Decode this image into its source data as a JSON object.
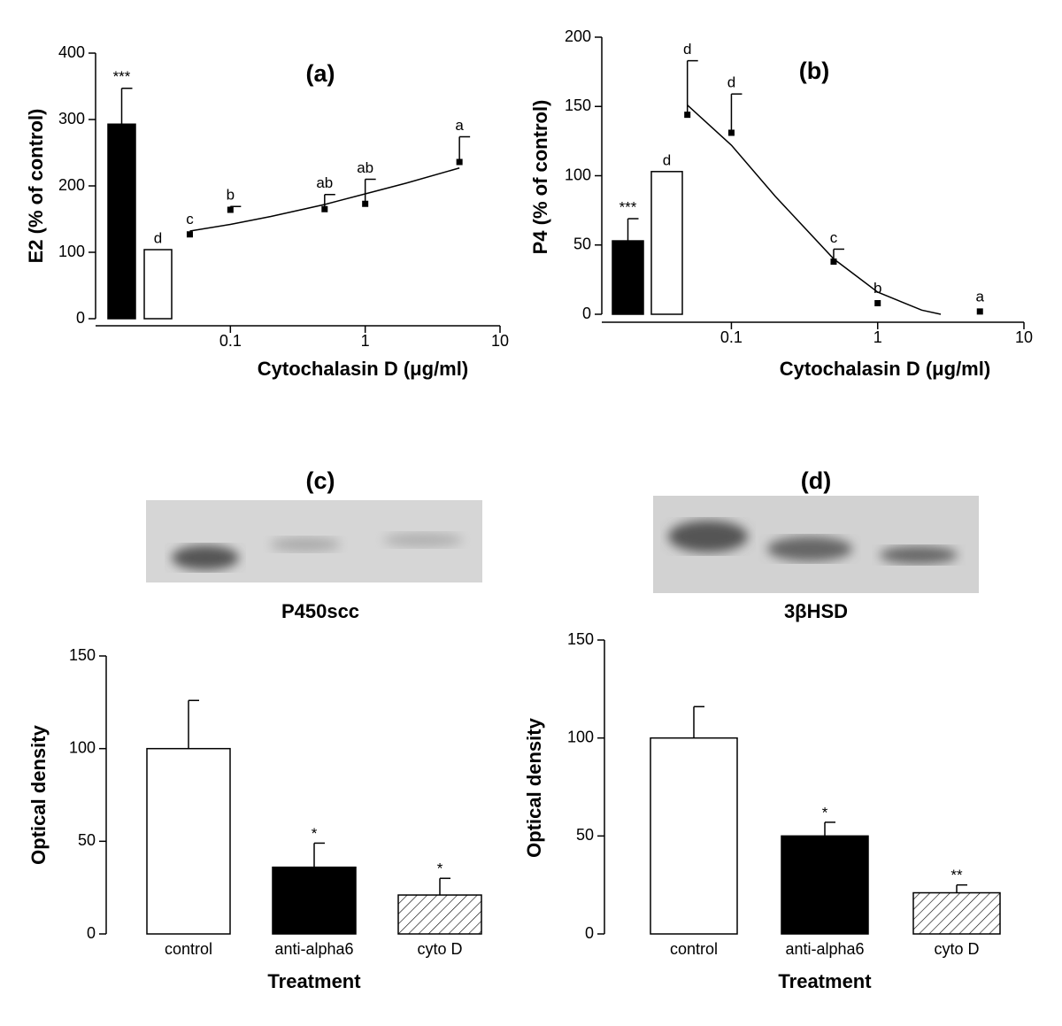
{
  "chart_data": [
    {
      "type": "dose_response",
      "title": "(a)",
      "y_label": "E2 (% of control)",
      "x_label": "Cytochalasin D (μg/ml)",
      "log_x": true,
      "xlim": [
        0.01,
        10
      ],
      "xticks": [
        0.1,
        1,
        10
      ],
      "ylim": [
        0,
        400
      ],
      "yticks": [
        0,
        100,
        200,
        300,
        400
      ],
      "bars": {
        "values": [
          293,
          104
        ],
        "errors": [
          54,
          null
        ],
        "colors": [
          "#000000",
          "#ffffff"
        ],
        "labels": [
          "***",
          "d"
        ]
      },
      "points": {
        "x": [
          0.05,
          0.1,
          0.5,
          1,
          5
        ],
        "values": [
          127,
          164,
          165,
          173,
          236
        ],
        "errors": [
          null,
          5,
          22,
          37,
          38
        ],
        "labels": [
          "c",
          "b",
          "ab",
          "ab",
          "a"
        ],
        "color": "#000000"
      },
      "fit": {
        "x": [
          0.05,
          0.1,
          0.2,
          0.5,
          1,
          2,
          5
        ],
        "values": [
          132,
          142,
          154,
          172,
          188,
          204,
          227
        ]
      }
    },
    {
      "type": "dose_response",
      "title": "(b)",
      "y_label": "P4 (% of control)",
      "x_label": "Cytochalasin D (μg/ml)",
      "log_x": true,
      "xlim": [
        0.013,
        10
      ],
      "xticks": [
        0.1,
        1,
        10
      ],
      "ylim": [
        0,
        200
      ],
      "yticks": [
        0,
        50,
        100,
        150,
        200
      ],
      "bars": {
        "values": [
          53,
          103
        ],
        "errors": [
          16,
          null
        ],
        "colors": [
          "#000000",
          "#ffffff"
        ],
        "labels": [
          "***",
          "d"
        ]
      },
      "points": {
        "x": [
          0.05,
          0.1,
          0.5,
          1,
          5
        ],
        "values": [
          144,
          131,
          38,
          8,
          2
        ],
        "errors": [
          39,
          28,
          9,
          null,
          null
        ],
        "labels": [
          "d",
          "d",
          "c",
          "b",
          "a"
        ],
        "color": "#000000"
      },
      "fit": {
        "x": [
          0.05,
          0.1,
          0.2,
          0.5,
          1,
          2,
          2.7
        ],
        "values": [
          151,
          122,
          85,
          40,
          16,
          3,
          0
        ]
      }
    },
    {
      "type": "bar",
      "title": "(c)",
      "blot_label": "P450scc",
      "y_label": "Optical density",
      "x_label": "Treatment",
      "categories": [
        "control",
        "anti-alpha6",
        "cyto D"
      ],
      "values": [
        100,
        36,
        21
      ],
      "errors": [
        26,
        13,
        9
      ],
      "annotations": [
        null,
        "*",
        "*"
      ],
      "fills": [
        "white",
        "black",
        "hatched"
      ],
      "ylim": [
        0,
        150
      ],
      "yticks": [
        0,
        50,
        100,
        150
      ]
    },
    {
      "type": "bar",
      "title": "(d)",
      "blot_label": "3βHSD",
      "y_label": "Optical density",
      "x_label": "Treatment",
      "categories": [
        "control",
        "anti-alpha6",
        "cyto D"
      ],
      "values": [
        100,
        50,
        21
      ],
      "errors": [
        16,
        7,
        4
      ],
      "annotations": [
        null,
        "*",
        "**"
      ],
      "fills": [
        "white",
        "black",
        "hatched"
      ],
      "ylim": [
        0,
        150
      ],
      "yticks": [
        0,
        50,
        100,
        150
      ]
    }
  ]
}
